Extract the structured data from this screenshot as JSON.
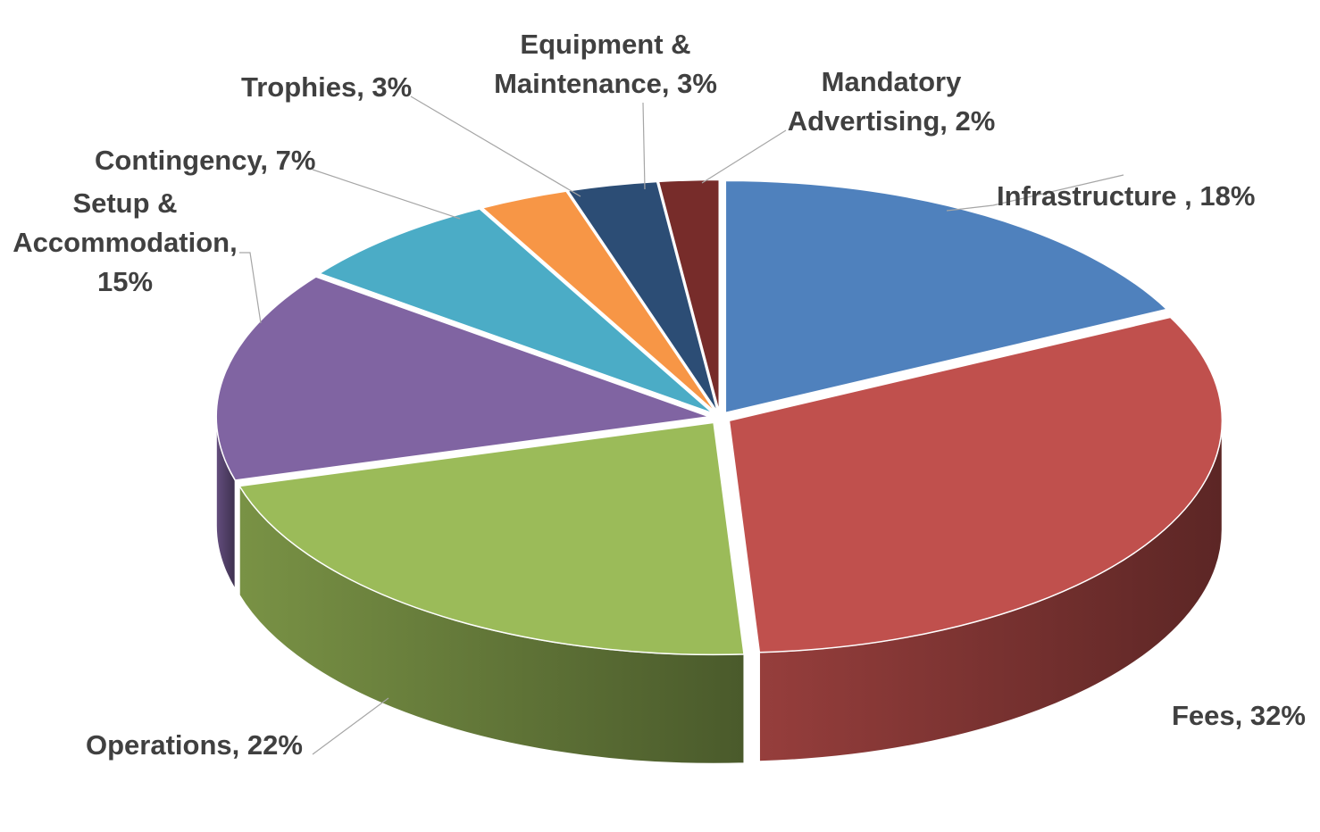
{
  "chart_data": {
    "type": "pie",
    "title": "",
    "labels_show_percent": true,
    "slices": [
      {
        "name": "Infrastructure ",
        "value": 18,
        "label": "Infrastructure , 18%",
        "color": "#4F81BD"
      },
      {
        "name": "Fees",
        "value": 32,
        "label": "Fees, 32%",
        "color": "#C0504D"
      },
      {
        "name": "Operations",
        "value": 22,
        "label": "Operations, 22%",
        "color": "#9BBB59"
      },
      {
        "name": "Setup & Accommodation",
        "value": 15,
        "label": "Setup & Accommodation, 15%",
        "color": "#8064A2"
      },
      {
        "name": "Contingency",
        "value": 7,
        "label": "Contingency, 7%",
        "color": "#4BACC6"
      },
      {
        "name": "Trophies",
        "value": 3,
        "label": "Trophies, 3%",
        "color": "#F79646"
      },
      {
        "name": "Equipment & Maintenance",
        "value": 3,
        "label": "Equipment & Maintenance, 3%",
        "color": "#2C4D75"
      },
      {
        "name": "Mandatory Advertising",
        "value": 2,
        "label": "Mandatory Advertising, 2%",
        "color": "#772C2A"
      }
    ]
  }
}
